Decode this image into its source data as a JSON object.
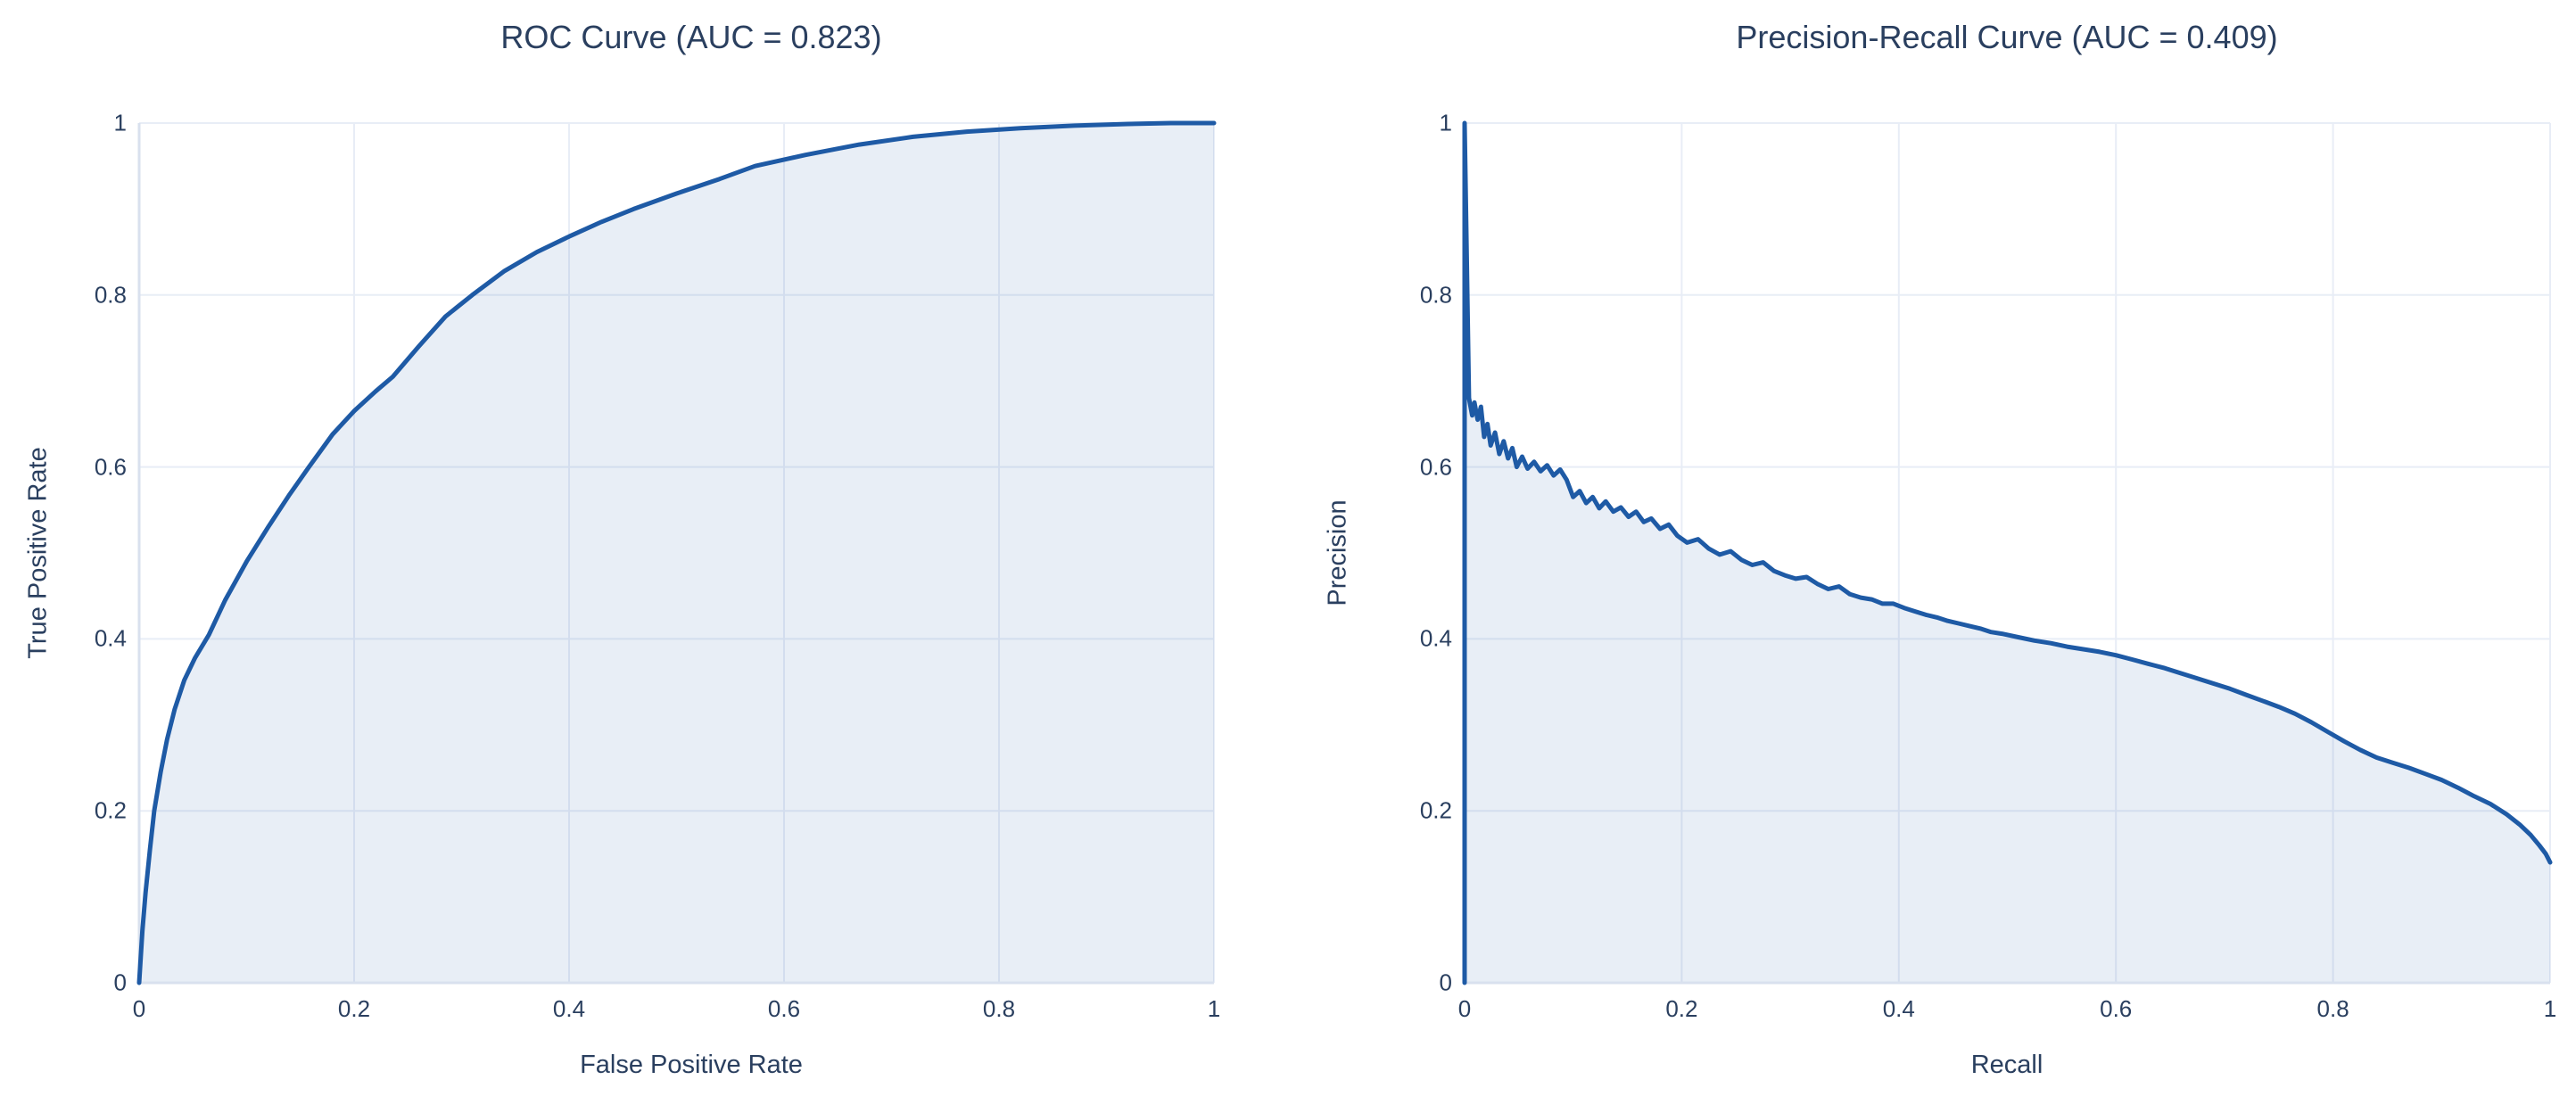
{
  "page": {
    "background": "#ffffff",
    "text_color": "#2a3f5f",
    "grid_color": "#e8edf6",
    "axis_line_color": "#d9e1ee"
  },
  "chart_data": [
    {
      "type": "area",
      "title": "ROC Curve (AUC = 0.823)",
      "xlabel": "False Positive Rate",
      "ylabel": "True Positive Rate",
      "auc": 0.823,
      "xlim": [
        0,
        1
      ],
      "ylim": [
        0,
        1
      ],
      "grid": true,
      "legend": "none",
      "x_ticks": [
        "0",
        "0.2",
        "0.4",
        "0.6",
        "0.8",
        "1"
      ],
      "y_ticks": [
        "0",
        "0.2",
        "0.4",
        "0.6",
        "0.8",
        "1"
      ],
      "line_color": "#1e5aa5",
      "fill_color": "rgba(31,90,165,0.10)",
      "points": [
        [
          0.0,
          0.0
        ],
        [
          0.003,
          0.06
        ],
        [
          0.006,
          0.105
        ],
        [
          0.01,
          0.155
        ],
        [
          0.014,
          0.2
        ],
        [
          0.02,
          0.245
        ],
        [
          0.026,
          0.283
        ],
        [
          0.033,
          0.318
        ],
        [
          0.042,
          0.352
        ],
        [
          0.052,
          0.378
        ],
        [
          0.065,
          0.405
        ],
        [
          0.08,
          0.445
        ],
        [
          0.1,
          0.49
        ],
        [
          0.12,
          0.53
        ],
        [
          0.14,
          0.568
        ],
        [
          0.158,
          0.6
        ],
        [
          0.18,
          0.638
        ],
        [
          0.2,
          0.665
        ],
        [
          0.22,
          0.688
        ],
        [
          0.236,
          0.705
        ],
        [
          0.26,
          0.74
        ],
        [
          0.285,
          0.775
        ],
        [
          0.31,
          0.8
        ],
        [
          0.34,
          0.828
        ],
        [
          0.37,
          0.85
        ],
        [
          0.4,
          0.868
        ],
        [
          0.43,
          0.885
        ],
        [
          0.46,
          0.9
        ],
        [
          0.5,
          0.918
        ],
        [
          0.54,
          0.935
        ],
        [
          0.573,
          0.95
        ],
        [
          0.62,
          0.963
        ],
        [
          0.67,
          0.975
        ],
        [
          0.72,
          0.984
        ],
        [
          0.77,
          0.99
        ],
        [
          0.82,
          0.994
        ],
        [
          0.87,
          0.997
        ],
        [
          0.92,
          0.999
        ],
        [
          0.96,
          1.0
        ],
        [
          1.0,
          1.0
        ]
      ]
    },
    {
      "type": "area",
      "title": "Precision-Recall Curve (AUC = 0.409)",
      "xlabel": "Recall",
      "ylabel": "Precision",
      "auc": 0.409,
      "xlim": [
        0,
        1
      ],
      "ylim": [
        0,
        1
      ],
      "grid": true,
      "legend": "none",
      "x_ticks": [
        "0",
        "0.2",
        "0.4",
        "0.6",
        "0.8",
        "1"
      ],
      "y_ticks": [
        "0",
        "0.2",
        "0.4",
        "0.6",
        "0.8",
        "1"
      ],
      "line_color": "#1e5aa5",
      "fill_color": "rgba(31,90,165,0.10)",
      "points": [
        [
          0.0,
          0.0
        ],
        [
          0.0,
          1.0
        ],
        [
          0.004,
          0.68
        ],
        [
          0.007,
          0.66
        ],
        [
          0.009,
          0.675
        ],
        [
          0.012,
          0.655
        ],
        [
          0.015,
          0.67
        ],
        [
          0.018,
          0.635
        ],
        [
          0.021,
          0.65
        ],
        [
          0.024,
          0.625
        ],
        [
          0.028,
          0.64
        ],
        [
          0.032,
          0.615
        ],
        [
          0.036,
          0.63
        ],
        [
          0.04,
          0.61
        ],
        [
          0.044,
          0.622
        ],
        [
          0.048,
          0.6
        ],
        [
          0.053,
          0.612
        ],
        [
          0.058,
          0.598
        ],
        [
          0.064,
          0.606
        ],
        [
          0.07,
          0.595
        ],
        [
          0.076,
          0.602
        ],
        [
          0.082,
          0.59
        ],
        [
          0.088,
          0.597
        ],
        [
          0.094,
          0.585
        ],
        [
          0.1,
          0.565
        ],
        [
          0.106,
          0.572
        ],
        [
          0.112,
          0.558
        ],
        [
          0.118,
          0.565
        ],
        [
          0.124,
          0.552
        ],
        [
          0.13,
          0.56
        ],
        [
          0.137,
          0.548
        ],
        [
          0.144,
          0.553
        ],
        [
          0.151,
          0.542
        ],
        [
          0.158,
          0.548
        ],
        [
          0.165,
          0.536
        ],
        [
          0.172,
          0.54
        ],
        [
          0.18,
          0.528
        ],
        [
          0.188,
          0.533
        ],
        [
          0.196,
          0.52
        ],
        [
          0.205,
          0.512
        ],
        [
          0.215,
          0.516
        ],
        [
          0.225,
          0.505
        ],
        [
          0.235,
          0.498
        ],
        [
          0.245,
          0.502
        ],
        [
          0.255,
          0.492
        ],
        [
          0.265,
          0.486
        ],
        [
          0.275,
          0.489
        ],
        [
          0.285,
          0.479
        ],
        [
          0.295,
          0.474
        ],
        [
          0.305,
          0.47
        ],
        [
          0.315,
          0.472
        ],
        [
          0.325,
          0.464
        ],
        [
          0.335,
          0.458
        ],
        [
          0.345,
          0.461
        ],
        [
          0.355,
          0.452
        ],
        [
          0.365,
          0.448
        ],
        [
          0.375,
          0.446
        ],
        [
          0.385,
          0.441
        ],
        [
          0.395,
          0.441
        ],
        [
          0.405,
          0.436
        ],
        [
          0.415,
          0.432
        ],
        [
          0.425,
          0.428
        ],
        [
          0.435,
          0.425
        ],
        [
          0.445,
          0.421
        ],
        [
          0.455,
          0.418
        ],
        [
          0.465,
          0.415
        ],
        [
          0.475,
          0.412
        ],
        [
          0.485,
          0.408
        ],
        [
          0.495,
          0.406
        ],
        [
          0.51,
          0.402
        ],
        [
          0.525,
          0.398
        ],
        [
          0.54,
          0.395
        ],
        [
          0.555,
          0.391
        ],
        [
          0.57,
          0.388
        ],
        [
          0.585,
          0.385
        ],
        [
          0.6,
          0.381
        ],
        [
          0.615,
          0.376
        ],
        [
          0.63,
          0.371
        ],
        [
          0.645,
          0.366
        ],
        [
          0.66,
          0.36
        ],
        [
          0.675,
          0.354
        ],
        [
          0.69,
          0.348
        ],
        [
          0.705,
          0.342
        ],
        [
          0.72,
          0.335
        ],
        [
          0.735,
          0.328
        ],
        [
          0.75,
          0.321
        ],
        [
          0.765,
          0.313
        ],
        [
          0.78,
          0.303
        ],
        [
          0.795,
          0.292
        ],
        [
          0.81,
          0.281
        ],
        [
          0.825,
          0.271
        ],
        [
          0.84,
          0.262
        ],
        [
          0.855,
          0.256
        ],
        [
          0.87,
          0.25
        ],
        [
          0.885,
          0.243
        ],
        [
          0.9,
          0.236
        ],
        [
          0.915,
          0.227
        ],
        [
          0.93,
          0.217
        ],
        [
          0.945,
          0.208
        ],
        [
          0.96,
          0.196
        ],
        [
          0.972,
          0.184
        ],
        [
          0.982,
          0.172
        ],
        [
          0.99,
          0.16
        ],
        [
          0.996,
          0.15
        ],
        [
          1.0,
          0.14
        ]
      ]
    }
  ]
}
